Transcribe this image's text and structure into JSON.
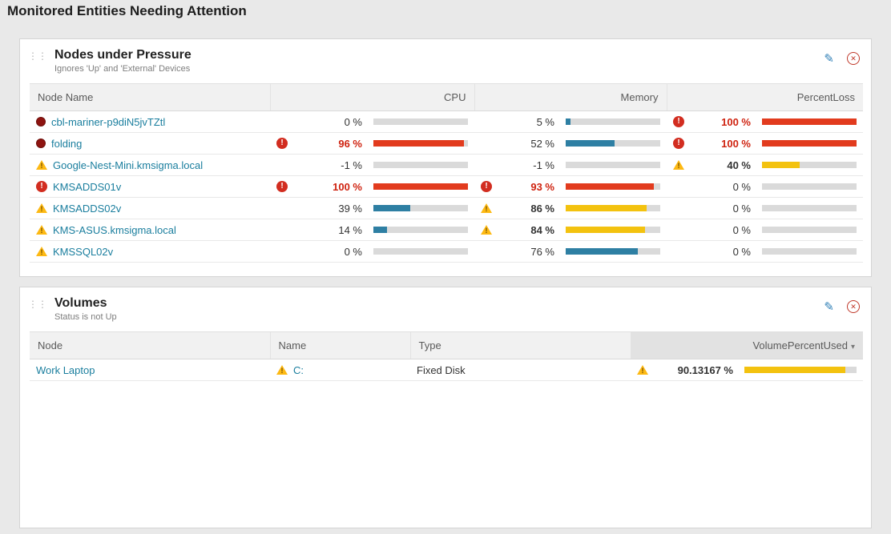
{
  "page": {
    "title": "Monitored Entities Needing Attention"
  },
  "colors": {
    "critical": "#e23b1e",
    "warning": "#f3c20f",
    "normal_bar": "#2e7fa3",
    "bar_track": "#dadada",
    "link": "#1a7e9e",
    "down_status": "#8e1410"
  },
  "widgets": {
    "nodes": {
      "title": "Nodes under Pressure",
      "subtitle": "Ignores 'Up' and 'External' Devices",
      "icons": {
        "edit": "pencil-icon",
        "close": "close-circle-icon",
        "drag": "drag-handle-icon"
      },
      "columns": {
        "c0": "Node Name",
        "c1": "CPU",
        "c2": "Memory",
        "c3": "PercentLoss"
      },
      "rows": [
        {
          "name": "cbl-mariner-p9diN5jvTZtl",
          "status": "down",
          "cpu": {
            "text": "0 %",
            "pct": 0,
            "level": "normal"
          },
          "memory": {
            "text": "5 %",
            "pct": 5,
            "level": "normal"
          },
          "loss": {
            "text": "100 %",
            "pct": 100,
            "level": "critical"
          }
        },
        {
          "name": "folding",
          "status": "down",
          "cpu": {
            "text": "96 %",
            "pct": 96,
            "level": "critical"
          },
          "memory": {
            "text": "52 %",
            "pct": 52,
            "level": "normal"
          },
          "loss": {
            "text": "100 %",
            "pct": 100,
            "level": "critical"
          }
        },
        {
          "name": "Google-Nest-Mini.kmsigma.local",
          "status": "warning",
          "cpu": {
            "text": "-1 %",
            "pct": 0,
            "level": "normal"
          },
          "memory": {
            "text": "-1 %",
            "pct": 0,
            "level": "normal"
          },
          "loss": {
            "text": "40 %",
            "pct": 40,
            "level": "warning"
          }
        },
        {
          "name": "KMSADDS01v",
          "status": "critical",
          "cpu": {
            "text": "100 %",
            "pct": 100,
            "level": "critical"
          },
          "memory": {
            "text": "93 %",
            "pct": 93,
            "level": "critical"
          },
          "loss": {
            "text": "0 %",
            "pct": 0,
            "level": "normal"
          }
        },
        {
          "name": "KMSADDS02v",
          "status": "warning",
          "cpu": {
            "text": "39 %",
            "pct": 39,
            "level": "normal"
          },
          "memory": {
            "text": "86 %",
            "pct": 86,
            "level": "warning"
          },
          "loss": {
            "text": "0 %",
            "pct": 0,
            "level": "normal"
          }
        },
        {
          "name": "KMS-ASUS.kmsigma.local",
          "status": "warning",
          "cpu": {
            "text": "14 %",
            "pct": 14,
            "level": "normal"
          },
          "memory": {
            "text": "84 %",
            "pct": 84,
            "level": "warning"
          },
          "loss": {
            "text": "0 %",
            "pct": 0,
            "level": "normal"
          }
        },
        {
          "name": "KMSSQL02v",
          "status": "warning",
          "cpu": {
            "text": "0 %",
            "pct": 0,
            "level": "normal"
          },
          "memory": {
            "text": "76 %",
            "pct": 76,
            "level": "normal"
          },
          "loss": {
            "text": "0 %",
            "pct": 0,
            "level": "normal"
          }
        }
      ]
    },
    "volumes": {
      "title": "Volumes",
      "subtitle": "Status is not Up",
      "icons": {
        "edit": "pencil-icon",
        "close": "close-circle-icon",
        "drag": "drag-handle-icon"
      },
      "columns": {
        "c0": "Node",
        "c1": "Name",
        "c2": "Type",
        "c3": "VolumePercentUsed"
      },
      "sort": {
        "column": "VolumePercentUsed",
        "caret": "▾"
      },
      "rows": [
        {
          "node": "Work Laptop",
          "name": "C:",
          "name_status": "warning",
          "type": "Fixed Disk",
          "used": {
            "text": "90.13167 %",
            "pct": 90,
            "level": "warning"
          }
        }
      ]
    }
  }
}
